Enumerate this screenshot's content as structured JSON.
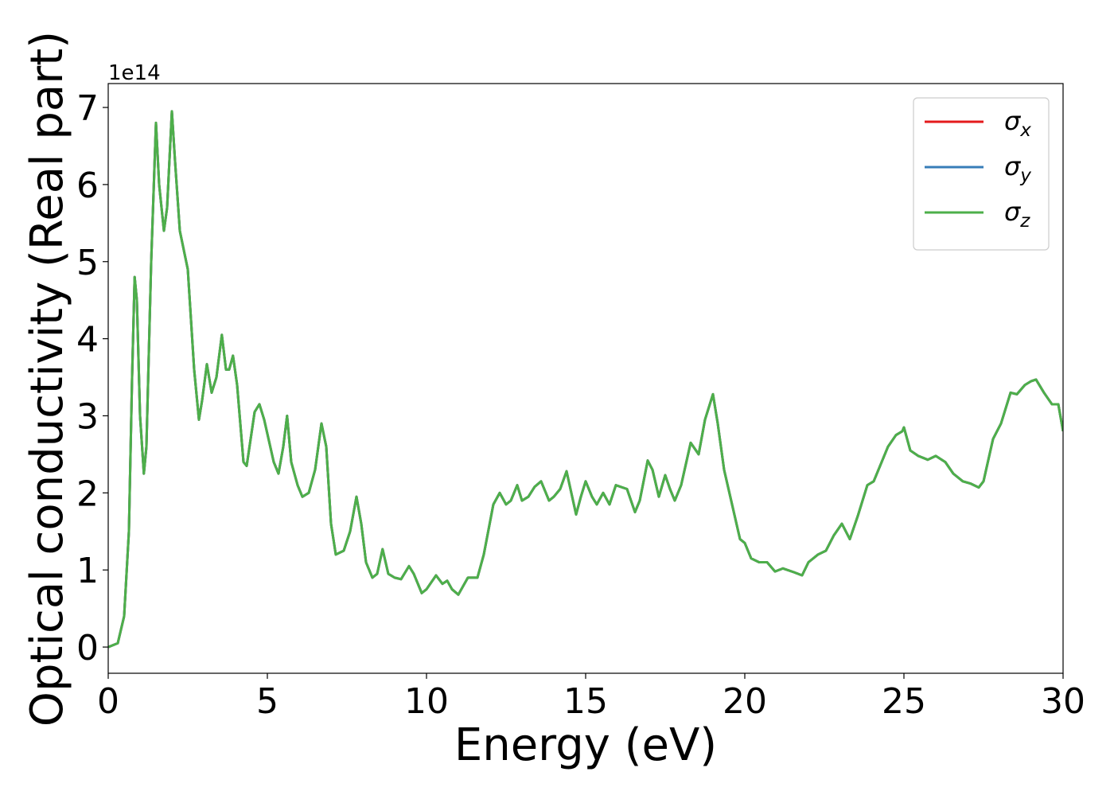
{
  "chart_data": {
    "type": "line",
    "x_label": "Energy (eV)",
    "y_label": "Optical conductivity (Real part)",
    "y_offset_text": "1e14",
    "xlim": [
      0,
      30
    ],
    "ylim": [
      -0.34,
      7.31
    ],
    "xticks": [
      0,
      5,
      10,
      15,
      20,
      25,
      30
    ],
    "yticks": [
      0,
      1,
      2,
      3,
      4,
      5,
      6,
      7
    ],
    "grid": false,
    "legend": "upper right",
    "x": [
      0,
      0.3,
      0.5,
      0.65,
      0.75,
      0.83,
      0.9,
      1.0,
      1.12,
      1.2,
      1.35,
      1.5,
      1.6,
      1.75,
      1.85,
      2.0,
      2.1,
      2.25,
      2.5,
      2.7,
      2.85,
      2.95,
      3.1,
      3.25,
      3.4,
      3.57,
      3.7,
      3.8,
      3.92,
      4.05,
      4.25,
      4.35,
      4.6,
      4.75,
      4.9,
      5.2,
      5.35,
      5.5,
      5.62,
      5.75,
      5.95,
      6.1,
      6.3,
      6.5,
      6.7,
      6.85,
      7.0,
      7.15,
      7.4,
      7.6,
      7.8,
      7.95,
      8.1,
      8.3,
      8.45,
      8.62,
      8.8,
      9.0,
      9.2,
      9.45,
      9.6,
      9.85,
      10.0,
      10.3,
      10.5,
      10.65,
      10.8,
      11.0,
      11.3,
      11.6,
      11.8,
      12.1,
      12.3,
      12.5,
      12.65,
      12.85,
      13.0,
      13.2,
      13.4,
      13.6,
      13.85,
      14.0,
      14.2,
      14.4,
      14.55,
      14.7,
      14.85,
      15.0,
      15.2,
      15.35,
      15.55,
      15.75,
      15.95,
      16.3,
      16.55,
      16.7,
      16.95,
      17.1,
      17.3,
      17.5,
      17.65,
      17.8,
      18.0,
      18.3,
      18.55,
      18.75,
      19.0,
      19.15,
      19.35,
      19.6,
      19.85,
      20.0,
      20.2,
      20.45,
      20.7,
      20.95,
      21.2,
      21.55,
      21.8,
      22.0,
      22.3,
      22.55,
      22.8,
      23.05,
      23.3,
      23.55,
      23.85,
      24.05,
      24.25,
      24.5,
      24.75,
      24.95,
      25.0,
      25.2,
      25.45,
      25.75,
      26.0,
      26.3,
      26.55,
      26.85,
      27.1,
      27.35,
      27.5,
      27.8,
      28.05,
      28.35,
      28.55,
      28.8,
      29.0,
      29.15,
      29.4,
      29.65,
      29.85,
      30.0
    ],
    "series": [
      {
        "name": "σx",
        "color": "#e41a1c",
        "values": [
          0,
          0.05,
          0.4,
          1.5,
          3.5,
          4.8,
          4.5,
          3.0,
          2.25,
          2.6,
          5.0,
          6.8,
          6.0,
          5.4,
          5.7,
          6.95,
          6.3,
          5.4,
          4.9,
          3.6,
          2.95,
          3.2,
          3.67,
          3.3,
          3.5,
          4.05,
          3.6,
          3.6,
          3.78,
          3.4,
          2.4,
          2.35,
          3.05,
          3.15,
          2.95,
          2.4,
          2.25,
          2.6,
          3.0,
          2.4,
          2.1,
          1.95,
          2.0,
          2.3,
          2.9,
          2.6,
          1.6,
          1.2,
          1.25,
          1.5,
          1.95,
          1.6,
          1.1,
          0.9,
          0.95,
          1.27,
          0.95,
          0.9,
          0.88,
          1.05,
          0.95,
          0.7,
          0.75,
          0.93,
          0.82,
          0.86,
          0.75,
          0.68,
          0.9,
          0.9,
          1.2,
          1.85,
          2.0,
          1.85,
          1.9,
          2.1,
          1.9,
          1.95,
          2.08,
          2.15,
          1.9,
          1.95,
          2.05,
          2.28,
          2.0,
          1.72,
          1.95,
          2.15,
          1.95,
          1.85,
          2.0,
          1.85,
          2.1,
          2.05,
          1.75,
          1.9,
          2.42,
          2.3,
          1.95,
          2.23,
          2.05,
          1.9,
          2.1,
          2.65,
          2.5,
          2.95,
          3.28,
          2.9,
          2.3,
          1.85,
          1.4,
          1.35,
          1.15,
          1.1,
          1.1,
          0.98,
          1.02,
          0.97,
          0.93,
          1.1,
          1.2,
          1.25,
          1.45,
          1.6,
          1.4,
          1.7,
          2.1,
          2.15,
          2.35,
          2.6,
          2.75,
          2.8,
          2.85,
          2.55,
          2.48,
          2.43,
          2.48,
          2.4,
          2.25,
          2.15,
          2.12,
          2.07,
          2.15,
          2.7,
          2.9,
          3.3,
          3.28,
          3.4,
          3.45,
          3.47,
          3.3,
          3.15,
          3.15,
          2.8
        ]
      },
      {
        "name": "σy",
        "color": "#377eb8",
        "values": [
          0,
          0.05,
          0.4,
          1.5,
          3.5,
          4.8,
          4.5,
          3.0,
          2.25,
          2.6,
          5.0,
          6.8,
          6.0,
          5.4,
          5.7,
          6.95,
          6.3,
          5.4,
          4.9,
          3.6,
          2.95,
          3.2,
          3.67,
          3.3,
          3.5,
          4.05,
          3.6,
          3.6,
          3.78,
          3.4,
          2.4,
          2.35,
          3.05,
          3.15,
          2.95,
          2.4,
          2.25,
          2.6,
          3.0,
          2.4,
          2.1,
          1.95,
          2.0,
          2.3,
          2.9,
          2.6,
          1.6,
          1.2,
          1.25,
          1.5,
          1.95,
          1.6,
          1.1,
          0.9,
          0.95,
          1.27,
          0.95,
          0.9,
          0.88,
          1.05,
          0.95,
          0.7,
          0.75,
          0.93,
          0.82,
          0.86,
          0.75,
          0.68,
          0.9,
          0.9,
          1.2,
          1.85,
          2.0,
          1.85,
          1.9,
          2.1,
          1.9,
          1.95,
          2.08,
          2.15,
          1.9,
          1.95,
          2.05,
          2.28,
          2.0,
          1.72,
          1.95,
          2.15,
          1.95,
          1.85,
          2.0,
          1.85,
          2.1,
          2.05,
          1.75,
          1.9,
          2.42,
          2.3,
          1.95,
          2.23,
          2.05,
          1.9,
          2.1,
          2.65,
          2.5,
          2.95,
          3.28,
          2.9,
          2.3,
          1.85,
          1.4,
          1.35,
          1.15,
          1.1,
          1.1,
          0.98,
          1.02,
          0.97,
          0.93,
          1.1,
          1.2,
          1.25,
          1.45,
          1.6,
          1.4,
          1.7,
          2.1,
          2.15,
          2.35,
          2.6,
          2.75,
          2.8,
          2.85,
          2.55,
          2.48,
          2.43,
          2.48,
          2.4,
          2.25,
          2.15,
          2.12,
          2.07,
          2.15,
          2.7,
          2.9,
          3.3,
          3.28,
          3.4,
          3.45,
          3.47,
          3.3,
          3.15,
          3.15,
          2.8
        ]
      },
      {
        "name": "σz",
        "color": "#4daf4a",
        "values": [
          0,
          0.05,
          0.4,
          1.5,
          3.5,
          4.8,
          4.5,
          3.0,
          2.25,
          2.6,
          5.0,
          6.8,
          6.0,
          5.4,
          5.7,
          6.95,
          6.3,
          5.4,
          4.9,
          3.6,
          2.95,
          3.2,
          3.67,
          3.3,
          3.5,
          4.05,
          3.6,
          3.6,
          3.78,
          3.4,
          2.4,
          2.35,
          3.05,
          3.15,
          2.95,
          2.4,
          2.25,
          2.6,
          3.0,
          2.4,
          2.1,
          1.95,
          2.0,
          2.3,
          2.9,
          2.6,
          1.6,
          1.2,
          1.25,
          1.5,
          1.95,
          1.6,
          1.1,
          0.9,
          0.95,
          1.27,
          0.95,
          0.9,
          0.88,
          1.05,
          0.95,
          0.7,
          0.75,
          0.93,
          0.82,
          0.86,
          0.75,
          0.68,
          0.9,
          0.9,
          1.2,
          1.85,
          2.0,
          1.85,
          1.9,
          2.1,
          1.9,
          1.95,
          2.08,
          2.15,
          1.9,
          1.95,
          2.05,
          2.28,
          2.0,
          1.72,
          1.95,
          2.15,
          1.95,
          1.85,
          2.0,
          1.85,
          2.1,
          2.05,
          1.75,
          1.9,
          2.42,
          2.3,
          1.95,
          2.23,
          2.05,
          1.9,
          2.1,
          2.65,
          2.5,
          2.95,
          3.28,
          2.9,
          2.3,
          1.85,
          1.4,
          1.35,
          1.15,
          1.1,
          1.1,
          0.98,
          1.02,
          0.97,
          0.93,
          1.1,
          1.2,
          1.25,
          1.45,
          1.6,
          1.4,
          1.7,
          2.1,
          2.15,
          2.35,
          2.6,
          2.75,
          2.8,
          2.85,
          2.55,
          2.48,
          2.43,
          2.48,
          2.4,
          2.25,
          2.15,
          2.12,
          2.07,
          2.15,
          2.7,
          2.9,
          3.3,
          3.28,
          3.4,
          3.45,
          3.47,
          3.3,
          3.15,
          3.15,
          2.8
        ]
      }
    ]
  }
}
